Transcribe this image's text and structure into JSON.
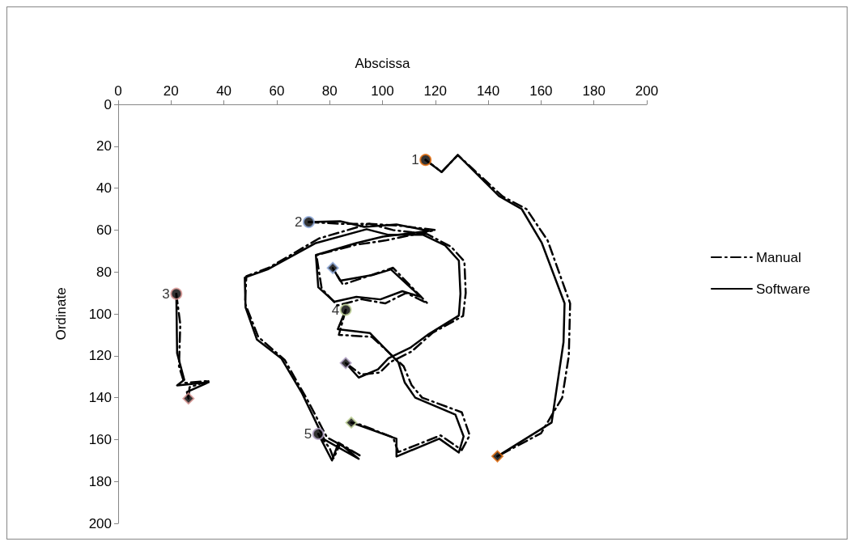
{
  "chart_data": {
    "type": "line",
    "xlabel": "Abscissa",
    "ylabel": "Ordinate",
    "xlim": [
      0,
      200
    ],
    "xticks": [
      0,
      20,
      40,
      60,
      80,
      100,
      120,
      140,
      160,
      180,
      200
    ],
    "ylim": [
      200,
      0
    ],
    "yticks": [
      0,
      20,
      40,
      60,
      80,
      100,
      120,
      140,
      160,
      180,
      200
    ],
    "grid": false,
    "legend": "right",
    "marker": "none",
    "series": [
      {
        "name": "Manual",
        "color": "#000000",
        "line_style": "dashed",
        "x": [
          116.3,
          122.4,
          128.5,
          145.5,
          154.5,
          162.5,
          171,
          170.5,
          168,
          160,
          143.5
        ],
        "values": [
          26.5,
          32.3,
          24.2,
          44,
          50,
          65,
          95,
          120,
          140,
          157,
          168
        ]
      },
      {
        "color": "#000000",
        "line_style": "dashed",
        "x": [
          72.1,
          84,
          95,
          107,
          120,
          101,
          90,
          75,
          77,
          83,
          92,
          101,
          109,
          117,
          104,
          97,
          85,
          81.2
        ],
        "values": [
          56.2,
          57,
          57,
          58,
          60,
          65,
          67,
          72,
          88,
          96,
          93,
          95,
          90,
          95,
          78,
          81,
          86,
          78.1
        ]
      },
      {
        "color": "#000000",
        "line_style": "dashed",
        "x": [
          22,
          23.5,
          23,
          25,
          34.5,
          27,
          26.6
        ],
        "values": [
          90.4,
          105,
          125,
          133,
          132,
          135,
          140.4
        ]
      },
      {
        "color": "#000000",
        "line_style": "dashed",
        "x": [
          86.1,
          83.5,
          96,
          108,
          111,
          115,
          130,
          133,
          130,
          122,
          106,
          104,
          92,
          88.2
        ],
        "values": [
          98.1,
          110,
          111,
          125,
          134,
          140,
          147,
          158,
          165,
          158,
          166,
          159,
          153,
          151.9
        ]
      },
      {
        "color": "#000000",
        "line_style": "dashed",
        "x": [
          75.7,
          80,
          81.5,
          84,
          92,
          79,
          72,
          63,
          53,
          48,
          48.5,
          57,
          76,
          95,
          104,
          117,
          126,
          131,
          131.5,
          130.5,
          119,
          111,
          103,
          99,
          92,
          86.1
        ],
        "values": [
          157.3,
          164,
          169,
          162,
          168,
          159,
          142,
          122,
          111,
          95,
          82,
          78,
          64,
          57,
          60,
          62,
          68,
          75,
          90,
          101,
          109,
          118,
          123,
          128,
          129,
          123.5
        ]
      },
      {
        "name": "Software",
        "color": "#000000",
        "line_style": "solid",
        "x": [
          116.3,
          122.4,
          128.5,
          144.1,
          152.7,
          160.3,
          168.9,
          168.5,
          164,
          143.5
        ],
        "values": [
          26.5,
          32.3,
          24.2,
          43.8,
          50,
          66.2,
          95,
          113.5,
          151.9,
          168
        ]
      },
      {
        "color": "#000000",
        "line_style": "solid",
        "x": [
          72.1,
          84,
          93.1,
          105.3,
          117.6,
          100.2,
          90.1,
          74.8,
          75.7,
          81.8,
          90.1,
          99.2,
          107.5,
          114.5,
          103.2,
          96.2,
          84,
          81.2
        ],
        "values": [
          56.2,
          55.8,
          58.5,
          57.3,
          60.4,
          63.1,
          66.2,
          71.9,
          87.3,
          94.2,
          91.9,
          93.1,
          89.2,
          91.9,
          78.8,
          81.5,
          84.2,
          78.1
        ]
      },
      {
        "color": "#000000",
        "line_style": "solid",
        "x": [
          22,
          22.3,
          25,
          22.3,
          34.2,
          26,
          26.6
        ],
        "values": [
          90.4,
          118.8,
          131.5,
          134.2,
          132.7,
          137.3,
          140.4
        ]
      },
      {
        "color": "#000000",
        "line_style": "solid",
        "x": [
          86.1,
          83.1,
          95.3,
          106,
          108.4,
          112.4,
          127.6,
          130.7,
          128.9,
          121.5,
          105.3,
          105.3,
          90.1,
          88.2
        ],
        "values": [
          98.1,
          107.3,
          109.2,
          123.1,
          132.7,
          140,
          148.1,
          158.5,
          166.2,
          159.6,
          168.1,
          159.6,
          152.7,
          151.9
        ]
      },
      {
        "color": "#000000",
        "line_style": "solid",
        "x": [
          75.7,
          80.9,
          83.4,
          91,
          78,
          69.6,
          61.7,
          52.5,
          48.2,
          47.9,
          56.5,
          74.8,
          94,
          102.3,
          115.4,
          123.7,
          128.9,
          129.5,
          128.9,
          117.6,
          110.5,
          102.3,
          98.3,
          91,
          86.1
        ],
        "values": [
          157.3,
          170,
          161.5,
          169.2,
          160,
          138,
          121.2,
          112.3,
          96.9,
          82.7,
          78.8,
          66.2,
          59.6,
          62.3,
          62.3,
          67.3,
          74.6,
          90.4,
          100.8,
          109.6,
          116.2,
          121.2,
          126.5,
          130.4,
          123.5
        ]
      },
      {
        "type": "scatter",
        "marker": "circle",
        "color": "#000000",
        "colors": [
          "#e46c0a",
          "#8eaadb",
          "#d99694",
          "#c3d69b",
          "#b3a2c7"
        ],
        "x": [
          116.3,
          72.1,
          22,
          86.1,
          75.7
        ],
        "values": [
          26.5,
          56.2,
          90.4,
          98.1,
          157.3
        ]
      },
      {
        "type": "scatter",
        "marker": "diamond",
        "color": "#000000",
        "colors": [
          "#e46c0a",
          "#8eaadb",
          "#d99694",
          "#c3d69b",
          "#b3a2c7"
        ],
        "x": [
          143.5,
          81.2,
          26.6,
          88.2,
          86.1
        ],
        "values": [
          168,
          78.1,
          140.4,
          151.9,
          123.5
        ]
      }
    ],
    "annotations": [
      {
        "text": "1",
        "x": 116.3,
        "y": 26.5
      },
      {
        "text": "2",
        "x": 72.1,
        "y": 56.2
      },
      {
        "text": "3",
        "x": 22,
        "y": 90.4
      },
      {
        "text": "4",
        "x": 86.1,
        "y": 98.1
      },
      {
        "text": "5",
        "x": 75.7,
        "y": 157.3
      }
    ]
  }
}
